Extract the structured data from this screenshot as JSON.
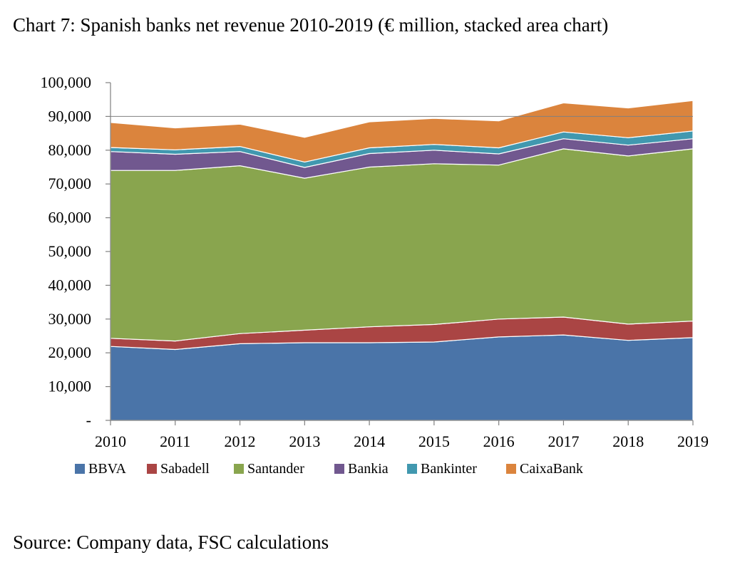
{
  "title": "Chart 7: Spanish banks net revenue 2010-2019 (€ million, stacked area chart)",
  "source": "Source: Company data, FSC calculations",
  "chart_data": {
    "type": "area",
    "stacked": true,
    "x": [
      "2010",
      "2011",
      "2012",
      "2013",
      "2014",
      "2015",
      "2016",
      "2017",
      "2018",
      "2019"
    ],
    "ylim": [
      0,
      100000
    ],
    "yticks": [
      0,
      10000,
      20000,
      30000,
      40000,
      50000,
      60000,
      70000,
      80000,
      90000,
      100000
    ],
    "ytick_labels": [
      "-",
      "10,000",
      "20,000",
      "30,000",
      "40,000",
      "50,000",
      "60,000",
      "70,000",
      "80,000",
      "90,000",
      "100,000"
    ],
    "grid": "horizontal at 90,000",
    "legend_position": "bottom",
    "series": [
      {
        "name": "BBVA",
        "color": "#4A74A8",
        "values": [
          21900,
          21000,
          22700,
          23000,
          23000,
          23200,
          24700,
          25300,
          23700,
          24500
        ]
      },
      {
        "name": "Sabadell",
        "color": "#AA4544",
        "values": [
          2400,
          2500,
          3000,
          3700,
          4700,
          5200,
          5300,
          5300,
          4800,
          4900
        ]
      },
      {
        "name": "Santander",
        "color": "#89A54E",
        "values": [
          49700,
          50500,
          49700,
          45000,
          47300,
          47600,
          45600,
          49800,
          49800,
          51000
        ]
      },
      {
        "name": "Bankia",
        "color": "#71588F",
        "values": [
          5600,
          4800,
          4200,
          3200,
          4000,
          4000,
          3300,
          3000,
          3200,
          3000
        ]
      },
      {
        "name": "Bankinter",
        "color": "#4198AF",
        "values": [
          1200,
          1300,
          1500,
          1600,
          1700,
          1700,
          1800,
          2000,
          2200,
          2300
        ]
      },
      {
        "name": "CaixaBank",
        "color": "#DB843D",
        "values": [
          7400,
          6500,
          6600,
          7300,
          7700,
          7700,
          8000,
          8600,
          8800,
          9000
        ]
      }
    ]
  }
}
